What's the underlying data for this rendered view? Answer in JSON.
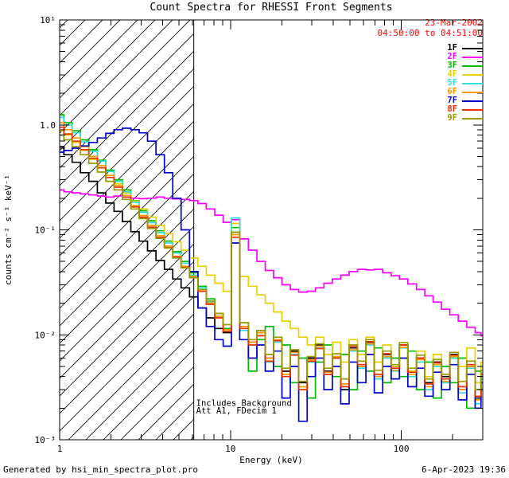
{
  "header": {
    "title": "Count Spectra for RHESSI Front Segments",
    "date": "23-Mar-2002",
    "time_range": "04:50:00 to 04:51:00",
    "date_color": "#ff0000"
  },
  "footer": {
    "generator": "Generated by hsi_min_spectra_plot.pro",
    "timestamp": "6-Apr-2023 19:36"
  },
  "chart_data": {
    "type": "line",
    "title": "Count Spectra for RHESSI Front Segments",
    "xlabel": "Energy (keV)",
    "ylabel": "counts cm⁻² s⁻¹ keV⁻¹",
    "xscale": "log",
    "yscale": "log",
    "xlim": [
      1,
      300
    ],
    "ylim": [
      0.001,
      10
    ],
    "grid": false,
    "legend_position": "top-right",
    "x_ticks": {
      "values": [
        1,
        10,
        100
      ],
      "labels": [
        "1",
        "10",
        "100"
      ]
    },
    "y_ticks": {
      "values": [
        10,
        1,
        0.1,
        0.01,
        0.001
      ],
      "labels": [
        "10¹",
        "1.0",
        "10⁻¹",
        "10⁻²",
        "10⁻³"
      ]
    },
    "hatch_region": {
      "x0": 1,
      "x1": 6.1
    },
    "cutoff_line_x": 6.1,
    "annotations": [
      {
        "x": 6.3,
        "y": 0.0021,
        "text": "Includes Background"
      },
      {
        "x": 6.3,
        "y": 0.00178,
        "text": "Att A1, FDecim 1"
      }
    ],
    "x": [
      1.0,
      1.12,
      1.25,
      1.4,
      1.57,
      1.76,
      1.97,
      2.2,
      2.47,
      2.76,
      3.09,
      3.46,
      3.88,
      4.34,
      4.86,
      5.44,
      6.1,
      6.83,
      7.64,
      8.56,
      9.59,
      10.7,
      12.0,
      13.5,
      15.1,
      16.9,
      18.9,
      21.2,
      23.7,
      26.6,
      29.7,
      33.3,
      37.3,
      41.8,
      46.8,
      52.4,
      58.7,
      65.7,
      73.6,
      82.4,
      92.3,
      103,
      116,
      130,
      145,
      163,
      182,
      204,
      228,
      256,
      286,
      300
    ],
    "series": [
      {
        "name": "1F",
        "color": "#000000",
        "values": [
          0.62,
          0.52,
          0.44,
          0.35,
          0.29,
          0.225,
          0.18,
          0.15,
          0.12,
          0.096,
          0.078,
          0.063,
          0.051,
          0.042,
          0.034,
          0.028,
          0.023,
          0.018,
          0.0145,
          0.0115,
          0.0105,
          0.095,
          0.013,
          0.0085,
          0.011,
          0.006,
          0.009,
          0.0045,
          0.007,
          0.0035,
          0.006,
          0.008,
          0.0045,
          0.006,
          0.003,
          0.0075,
          0.005,
          0.0085,
          0.004,
          0.0065,
          0.005,
          0.008,
          0.0045,
          0.006,
          0.0035,
          0.0055,
          0.004,
          0.0065,
          0.003,
          0.005,
          0.0025,
          0.004
        ]
      },
      {
        "name": "2F",
        "color": "#ff00ff",
        "values": [
          0.24,
          0.23,
          0.225,
          0.22,
          0.215,
          0.21,
          0.205,
          0.21,
          0.205,
          0.2,
          0.198,
          0.2,
          0.205,
          0.2,
          0.197,
          0.195,
          0.19,
          0.178,
          0.158,
          0.138,
          0.118,
          0.125,
          0.082,
          0.064,
          0.05,
          0.041,
          0.035,
          0.03,
          0.027,
          0.0255,
          0.026,
          0.028,
          0.031,
          0.034,
          0.037,
          0.04,
          0.042,
          0.0415,
          0.042,
          0.039,
          0.0365,
          0.034,
          0.0305,
          0.027,
          0.0235,
          0.0205,
          0.0175,
          0.0155,
          0.0135,
          0.0118,
          0.0105,
          0.0098
        ]
      },
      {
        "name": "3F",
        "color": "#00bb00",
        "values": [
          1.25,
          1.05,
          0.88,
          0.72,
          0.58,
          0.46,
          0.37,
          0.3,
          0.24,
          0.19,
          0.152,
          0.122,
          0.098,
          0.078,
          0.062,
          0.05,
          0.039,
          0.029,
          0.022,
          0.016,
          0.0115,
          0.105,
          0.012,
          0.0045,
          0.009,
          0.012,
          0.005,
          0.008,
          0.0035,
          0.006,
          0.0025,
          0.0055,
          0.008,
          0.004,
          0.0065,
          0.003,
          0.007,
          0.0045,
          0.0075,
          0.0035,
          0.006,
          0.004,
          0.007,
          0.003,
          0.0055,
          0.0025,
          0.005,
          0.0035,
          0.006,
          0.002,
          0.0045,
          0.003
        ]
      },
      {
        "name": "4F",
        "color": "#e8d000",
        "values": [
          0.88,
          0.8,
          0.68,
          0.57,
          0.47,
          0.39,
          0.33,
          0.275,
          0.225,
          0.188,
          0.158,
          0.132,
          0.11,
          0.092,
          0.077,
          0.064,
          0.054,
          0.045,
          0.037,
          0.031,
          0.026,
          0.115,
          0.036,
          0.029,
          0.024,
          0.02,
          0.0165,
          0.0135,
          0.0115,
          0.0095,
          0.008,
          0.0095,
          0.0065,
          0.0085,
          0.0055,
          0.009,
          0.0065,
          0.0095,
          0.0055,
          0.008,
          0.005,
          0.0075,
          0.0045,
          0.007,
          0.004,
          0.0065,
          0.0035,
          0.006,
          0.005,
          0.0075,
          0.0035,
          0.0055
        ]
      },
      {
        "name": "5F",
        "color": "#33dddd",
        "values": [
          1.18,
          1.0,
          0.84,
          0.69,
          0.56,
          0.45,
          0.36,
          0.29,
          0.23,
          0.183,
          0.147,
          0.117,
          0.094,
          0.075,
          0.06,
          0.048,
          0.037,
          0.028,
          0.0205,
          0.0148,
          0.0108,
          0.13,
          0.011,
          0.008,
          0.0105,
          0.0055,
          0.0085,
          0.004,
          0.0065,
          0.003,
          0.0055,
          0.0075,
          0.0042,
          0.006,
          0.0032,
          0.007,
          0.0048,
          0.008,
          0.0038,
          0.006,
          0.0045,
          0.0075,
          0.004,
          0.0055,
          0.003,
          0.005,
          0.0035,
          0.006,
          0.0028,
          0.0048,
          0.0022,
          0.0038
        ]
      },
      {
        "name": "6F",
        "color": "#ff9900",
        "values": [
          1.05,
          0.9,
          0.75,
          0.62,
          0.5,
          0.41,
          0.33,
          0.265,
          0.213,
          0.17,
          0.137,
          0.11,
          0.088,
          0.07,
          0.056,
          0.045,
          0.036,
          0.027,
          0.02,
          0.015,
          0.0112,
          0.09,
          0.012,
          0.0085,
          0.0105,
          0.006,
          0.009,
          0.0042,
          0.0068,
          0.0032,
          0.0058,
          0.0078,
          0.0044,
          0.0062,
          0.0034,
          0.0072,
          0.005,
          0.0082,
          0.004,
          0.0062,
          0.0046,
          0.0076,
          0.0042,
          0.0058,
          0.0032,
          0.0052,
          0.0036,
          0.0062,
          0.003,
          0.005,
          0.0024,
          0.004
        ]
      },
      {
        "name": "7F",
        "color": "#0000cc",
        "values": [
          0.55,
          0.57,
          0.6,
          0.63,
          0.68,
          0.75,
          0.83,
          0.9,
          0.93,
          0.9,
          0.84,
          0.7,
          0.52,
          0.35,
          0.2,
          0.1,
          0.04,
          0.018,
          0.012,
          0.009,
          0.0078,
          0.075,
          0.009,
          0.006,
          0.008,
          0.0045,
          0.007,
          0.0025,
          0.005,
          0.0015,
          0.004,
          0.006,
          0.003,
          0.005,
          0.0022,
          0.0055,
          0.0035,
          0.0065,
          0.0028,
          0.005,
          0.0038,
          0.006,
          0.0032,
          0.0048,
          0.0026,
          0.0044,
          0.003,
          0.0052,
          0.0024,
          0.0042,
          0.002,
          0.0035
        ]
      },
      {
        "name": "8F",
        "color": "#ee3000",
        "values": [
          0.95,
          0.82,
          0.7,
          0.58,
          0.48,
          0.39,
          0.315,
          0.255,
          0.205,
          0.165,
          0.132,
          0.106,
          0.085,
          0.068,
          0.055,
          0.044,
          0.035,
          0.026,
          0.0195,
          0.0145,
          0.0108,
          0.085,
          0.0115,
          0.008,
          0.0098,
          0.0056,
          0.0088,
          0.004,
          0.0064,
          0.003,
          0.0056,
          0.0074,
          0.0042,
          0.006,
          0.0032,
          0.0078,
          0.0052,
          0.0086,
          0.0042,
          0.0066,
          0.0048,
          0.008,
          0.0044,
          0.006,
          0.0034,
          0.0054,
          0.0038,
          0.0064,
          0.0032,
          0.0052,
          0.0026,
          0.0042
        ]
      },
      {
        "name": "9F",
        "color": "#999900",
        "values": [
          0.8,
          0.72,
          0.62,
          0.52,
          0.43,
          0.355,
          0.29,
          0.24,
          0.195,
          0.158,
          0.128,
          0.103,
          0.083,
          0.067,
          0.054,
          0.0435,
          0.035,
          0.027,
          0.021,
          0.016,
          0.0125,
          0.095,
          0.013,
          0.009,
          0.011,
          0.0065,
          0.0095,
          0.0048,
          0.0072,
          0.0036,
          0.0062,
          0.0082,
          0.0048,
          0.0066,
          0.0038,
          0.008,
          0.0056,
          0.009,
          0.0046,
          0.007,
          0.0052,
          0.0084,
          0.0048,
          0.0064,
          0.0038,
          0.0058,
          0.0042,
          0.0068,
          0.0036,
          0.0056,
          0.003,
          0.0046
        ]
      }
    ]
  }
}
